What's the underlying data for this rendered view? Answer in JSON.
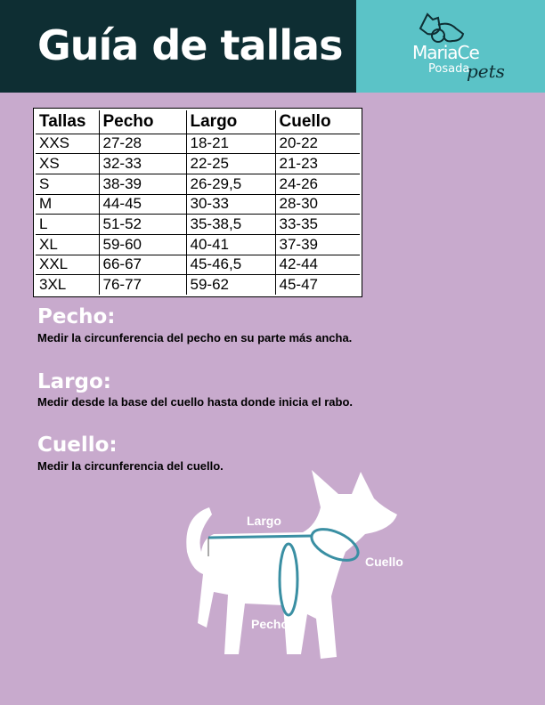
{
  "header": {
    "title": "Guía de tallas"
  },
  "logo": {
    "line1": "MariaCe",
    "line2": "Posada",
    "line3": "pets"
  },
  "table": {
    "headers": [
      "Tallas",
      "Pecho",
      "Largo",
      "Cuello"
    ],
    "rows": [
      [
        "XXS",
        "27-28",
        "18-21",
        "20-22"
      ],
      [
        "XS",
        "32-33",
        "22-25",
        "21-23"
      ],
      [
        "S",
        "38-39",
        "26-29,5",
        "24-26"
      ],
      [
        "M",
        "44-45",
        "30-33",
        "28-30"
      ],
      [
        "L",
        "51-52",
        "35-38,5",
        "33-35"
      ],
      [
        "XL",
        "59-60",
        "40-41",
        "37-39"
      ],
      [
        "XXL",
        "66-67",
        "45-46,5",
        "42-44"
      ],
      [
        "3XL",
        "76-77",
        "59-62",
        "45-47"
      ]
    ]
  },
  "sections": [
    {
      "title": "Pecho:",
      "desc": "Medir la circunferencia del pecho en su parte más ancha."
    },
    {
      "title": "Largo:",
      "desc": "Medir desde la base del cuello hasta donde inicia el rabo."
    },
    {
      "title": "Cuello:",
      "desc": "Medir la circunferencia del cuello."
    }
  ],
  "diagram": {
    "largo": "Largo",
    "cuello": "Cuello",
    "pecho": "Pecho"
  },
  "colors": {
    "header": "#0e2e33",
    "logo_bg": "#5bc3c7",
    "background": "#c8aacd",
    "measure": "#3a8fa3"
  }
}
